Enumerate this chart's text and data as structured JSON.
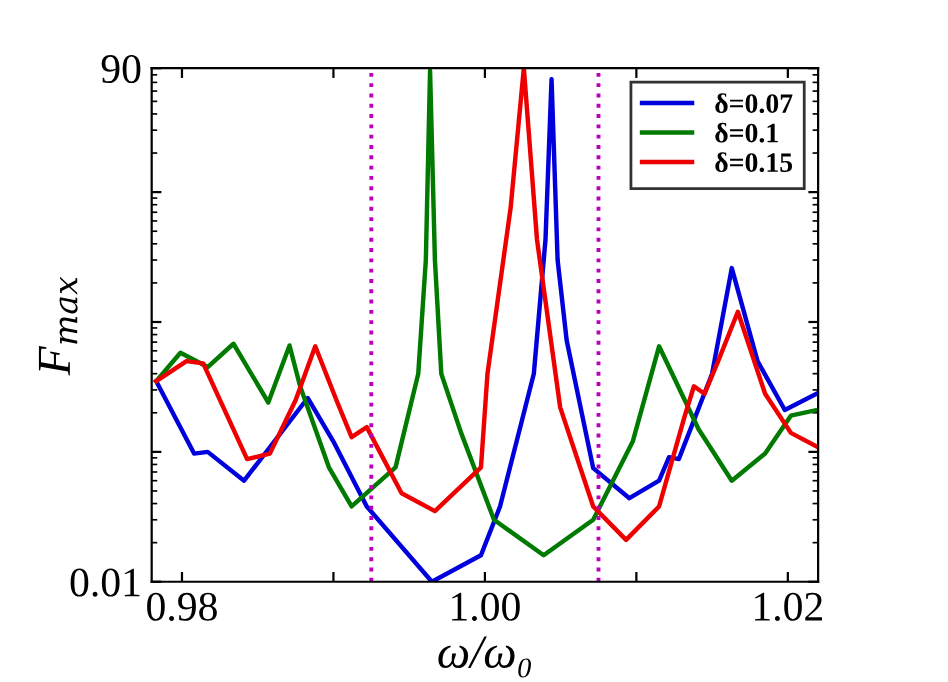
{
  "chart_data": {
    "type": "line",
    "xlabel": "ω/ω₀",
    "ylabel": "F$_{max}$",
    "log": "y",
    "xlim": [
      0.978,
      1.022
    ],
    "xticks": [
      {
        "value": 0.98,
        "label": "0.98"
      },
      {
        "value": 0.99,
        "label": null
      },
      {
        "value": 1.0,
        "label": "1.00"
      },
      {
        "value": 1.01,
        "label": null
      },
      {
        "value": 1.02,
        "label": "1.02"
      }
    ],
    "ylim": [
      0.01,
      90
    ],
    "yticks": [
      0.01,
      {
        "value": 0.1,
        "label": null
      },
      {
        "value": 1,
        "label": null
      },
      {
        "value": 10,
        "label": null
      },
      90
    ],
    "grid": false,
    "legend": "top right",
    "line_style": "solid",
    "marker": "none",
    "series": [
      {
        "name": "δ=0.07",
        "color": "#0000dd",
        "x": [
          0.9783,
          0.9808,
          0.9817,
          0.9841,
          0.9883,
          0.99,
          0.9922,
          0.9965,
          0.99974,
          1.001,
          1.00323,
          1.004,
          1.0044,
          1.0048,
          1.0054,
          1.00715,
          1.00954,
          1.0115,
          1.01216,
          1.0128,
          1.015,
          1.0163,
          1.018,
          1.0198,
          1.0219
        ],
        "values": [
          0.35,
          0.097,
          0.1,
          0.06,
          0.26,
          0.12,
          0.038,
          0.01,
          0.016,
          0.038,
          0.4,
          4.3,
          74,
          3,
          0.72,
          0.075,
          0.044,
          0.06,
          0.091,
          0.088,
          0.4,
          2.6,
          0.5,
          0.21,
          0.28
        ]
      },
      {
        "name": "δ=0.1",
        "color": "#007a00",
        "x": [
          0.9783,
          0.9799,
          0.9817,
          0.9834,
          0.9857,
          0.9871,
          0.9878,
          0.9897,
          0.9912,
          0.9941,
          0.9956,
          0.9961,
          0.99638,
          0.9967,
          0.99712,
          0.99843,
          1.0006,
          1.00388,
          1.00715,
          1.00976,
          1.0115,
          1.0141,
          1.0163,
          1.0185,
          1.0202,
          1.0219
        ],
        "values": [
          0.35,
          0.58,
          0.45,
          0.68,
          0.24,
          0.66,
          0.32,
          0.076,
          0.038,
          0.076,
          0.4,
          3,
          86,
          3,
          0.4,
          0.14,
          0.03,
          0.016,
          0.03,
          0.12,
          0.65,
          0.15,
          0.06,
          0.097,
          0.19,
          0.21
        ]
      },
      {
        "name": "δ=0.15",
        "color": "#ee0000",
        "x": [
          0.9783,
          0.9803,
          0.9814,
          0.9843,
          0.9858,
          0.9875,
          0.9888,
          0.9902,
          0.9912,
          0.9922,
          0.9945,
          0.9967,
          0.99974,
          1.00017,
          1.0017,
          1.00257,
          1.00344,
          1.00497,
          1.00715,
          1.00932,
          1.0115,
          1.0132,
          1.0138,
          1.0145,
          1.0154,
          1.0167,
          1.0185,
          1.0202,
          1.0219
        ],
        "values": [
          0.35,
          0.5,
          0.48,
          0.088,
          0.097,
          0.25,
          0.65,
          0.25,
          0.13,
          0.155,
          0.048,
          0.035,
          0.076,
          0.4,
          7.6,
          90,
          4.3,
          0.22,
          0.038,
          0.021,
          0.038,
          0.19,
          0.32,
          0.28,
          0.5,
          1.2,
          0.28,
          0.14,
          0.11
        ]
      }
    ],
    "ref_lines": [
      {
        "axis": "x",
        "value": 0.9925,
        "label": null,
        "color": "#bb00bb",
        "line_style": "dotted"
      },
      {
        "axis": "x",
        "value": 1.0075,
        "label": null,
        "color": "#bb00bb",
        "line_style": "dotted"
      }
    ]
  }
}
